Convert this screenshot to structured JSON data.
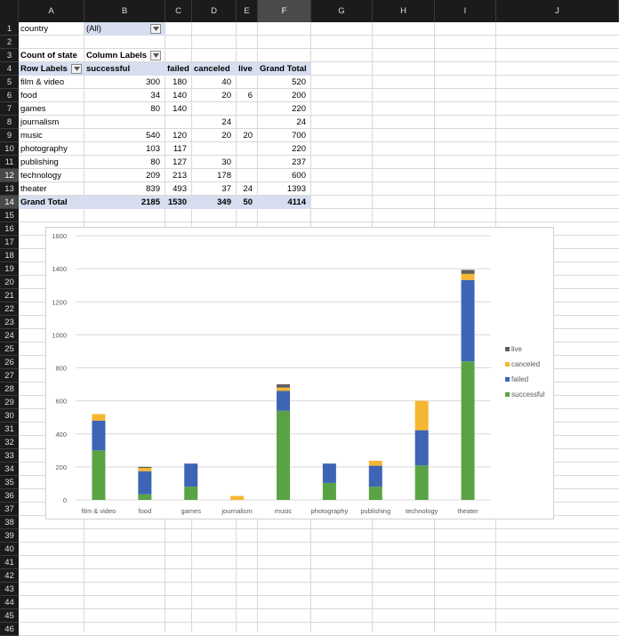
{
  "columns": [
    "A",
    "B",
    "C",
    "D",
    "E",
    "F",
    "G",
    "H",
    "I",
    "J"
  ],
  "rows": [
    "1",
    "2",
    "3",
    "4",
    "5",
    "6",
    "7",
    "8",
    "9",
    "10",
    "11",
    "12",
    "13",
    "14",
    "15",
    "16",
    "17",
    "18",
    "19",
    "20",
    "21",
    "22",
    "23",
    "24",
    "25",
    "26",
    "27",
    "28",
    "29",
    "30",
    "31",
    "32",
    "33",
    "34",
    "35",
    "36",
    "37",
    "38",
    "39",
    "40",
    "41",
    "42",
    "43",
    "44",
    "45",
    "46"
  ],
  "filter": {
    "label": "country",
    "value": "(All)"
  },
  "pivot": {
    "measure_label": "Count of state",
    "col_labels_label": "Column Labels",
    "row_labels_label": "Row Labels",
    "headers": [
      "successful",
      "failed",
      "canceled",
      "live",
      "Grand Total"
    ],
    "rows": [
      {
        "label": "film & video",
        "successful": "300",
        "failed": "180",
        "canceled": "40",
        "live": "",
        "total": "520"
      },
      {
        "label": "food",
        "successful": "34",
        "failed": "140",
        "canceled": "20",
        "live": "6",
        "total": "200"
      },
      {
        "label": "games",
        "successful": "80",
        "failed": "140",
        "canceled": "",
        "live": "",
        "total": "220"
      },
      {
        "label": "journalism",
        "successful": "",
        "failed": "",
        "canceled": "24",
        "live": "",
        "total": "24"
      },
      {
        "label": "music",
        "successful": "540",
        "failed": "120",
        "canceled": "20",
        "live": "20",
        "total": "700"
      },
      {
        "label": "photography",
        "successful": "103",
        "failed": "117",
        "canceled": "",
        "live": "",
        "total": "220"
      },
      {
        "label": "publishing",
        "successful": "80",
        "failed": "127",
        "canceled": "30",
        "live": "",
        "total": "237"
      },
      {
        "label": "technology",
        "successful": "209",
        "failed": "213",
        "canceled": "178",
        "live": "",
        "total": "600"
      },
      {
        "label": "theater",
        "successful": "839",
        "failed": "493",
        "canceled": "37",
        "live": "24",
        "total": "1393"
      }
    ],
    "grand_total": {
      "label": "Grand Total",
      "successful": "2185",
      "failed": "1530",
      "canceled": "349",
      "live": "50",
      "total": "4114"
    }
  },
  "chart_data": {
    "type": "bar",
    "stacked": true,
    "title": "",
    "xlabel": "",
    "ylabel": "",
    "categories": [
      "film & video",
      "food",
      "games",
      "journalism",
      "music",
      "photography",
      "publishing",
      "technology",
      "theater"
    ],
    "series": [
      {
        "name": "successful",
        "color": "#5aa345",
        "values": [
          300,
          34,
          80,
          0,
          540,
          103,
          80,
          209,
          839
        ]
      },
      {
        "name": "failed",
        "color": "#3e64b5",
        "values": [
          180,
          140,
          140,
          0,
          120,
          117,
          127,
          213,
          493
        ]
      },
      {
        "name": "canceled",
        "color": "#f5b731",
        "values": [
          40,
          20,
          0,
          24,
          20,
          0,
          30,
          178,
          37
        ]
      },
      {
        "name": "live",
        "color": "#5f5f5f",
        "values": [
          0,
          6,
          0,
          0,
          20,
          0,
          0,
          0,
          24
        ]
      }
    ],
    "yticks": [
      "0",
      "200",
      "400",
      "600",
      "800",
      "1000",
      "1200",
      "1400",
      "1600"
    ],
    "ylim": [
      0,
      1600
    ],
    "grid": true,
    "legend_position": "right"
  }
}
